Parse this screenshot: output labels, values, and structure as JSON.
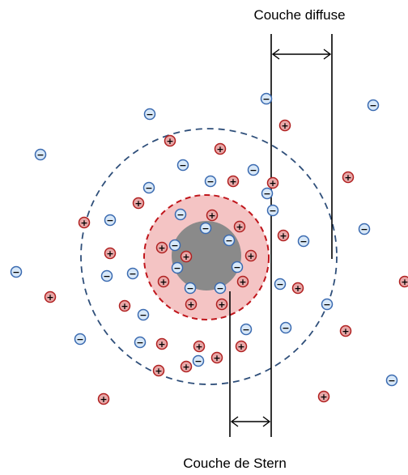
{
  "labels": {
    "diffuse_layer": "Couche diffuse",
    "stern_layer": "Couche de Stern"
  },
  "ions": {
    "positive_symbol": "+",
    "negative_symbol": "−"
  },
  "colors": {
    "positive_fill": "#e8a8a8",
    "positive_stroke": "#b02020",
    "negative_fill": "#d8e8f8",
    "negative_stroke": "#3a6ab0",
    "stern_fill": "#f4c4c4",
    "stern_stroke": "#c0161c",
    "particle_fill": "#8a8a8a",
    "diffuse_stroke": "#2f4f7a"
  }
}
